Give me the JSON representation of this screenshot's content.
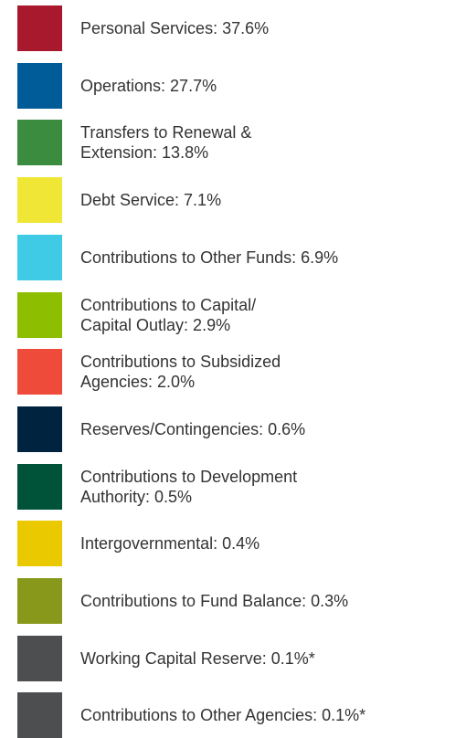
{
  "items": [
    {
      "lines": [
        "Personal Services: 37.6%"
      ],
      "color": "#a8192e"
    },
    {
      "lines": [
        "Operations: 27.7%"
      ],
      "color": "#005b99"
    },
    {
      "lines": [
        "Transfers to Renewal &",
        "Extension: 13.8%"
      ],
      "color": "#3c8c3f"
    },
    {
      "lines": [
        "Debt Service: 7.1%"
      ],
      "color": "#f0e636"
    },
    {
      "lines": [
        "Contributions to Other Funds: 6.9%"
      ],
      "color": "#3fcbe6"
    },
    {
      "lines": [
        "Contributions to Capital/",
        "Capital Outlay: 2.9%"
      ],
      "color": "#8ebe00"
    },
    {
      "lines": [
        "Contributions to Subsidized",
        "Agencies: 2.0%"
      ],
      "color": "#ee4b3a"
    },
    {
      "lines": [
        "Reserves/Contingencies: 0.6%"
      ],
      "color": "#00233f"
    },
    {
      "lines": [
        "Contributions to Development",
        "Authority: 0.5%"
      ],
      "color": "#005238"
    },
    {
      "lines": [
        "Intergovernmental: 0.4%"
      ],
      "color": "#eac900"
    },
    {
      "lines": [
        "Contributions to Fund Balance: 0.3%"
      ],
      "color": "#87981b"
    },
    {
      "lines": [
        "Working Capital Reserve: 0.1%*"
      ],
      "color": "#4d4e50"
    },
    {
      "lines": [
        "Contributions to Other Agencies: 0.1%*"
      ],
      "color": "#4d4e50"
    }
  ]
}
